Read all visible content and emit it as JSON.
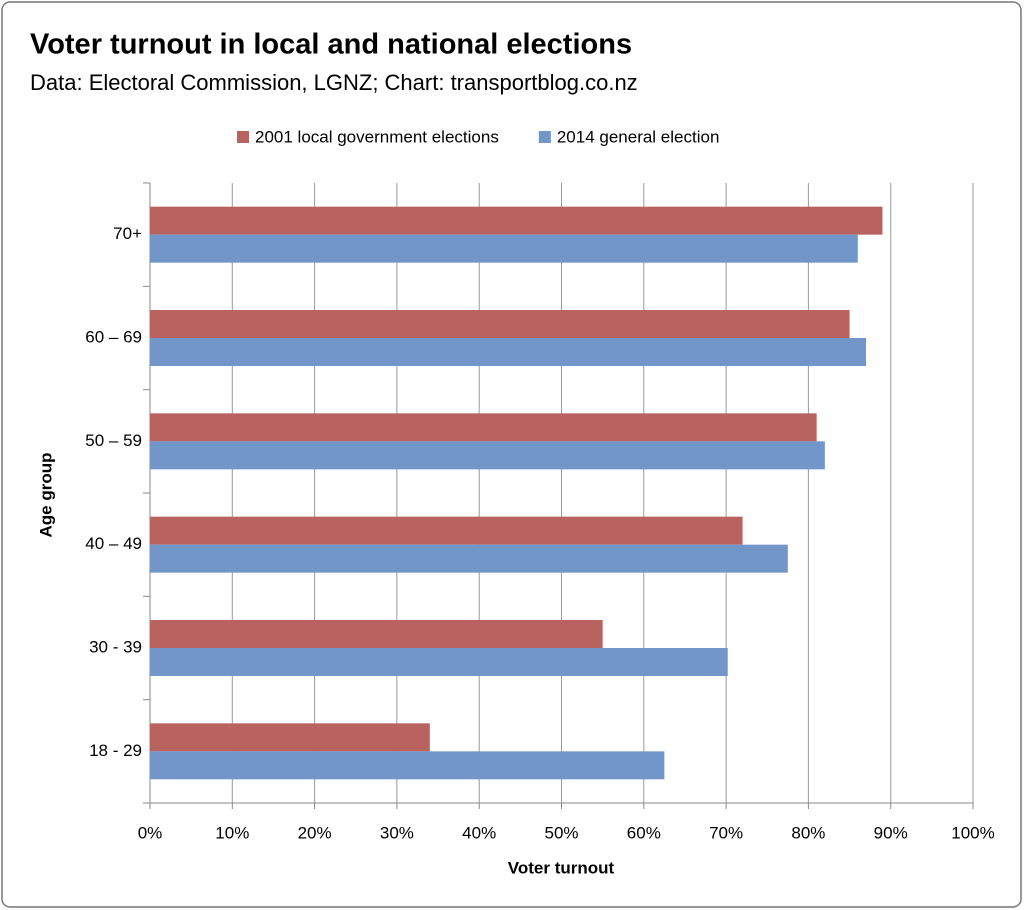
{
  "chart_data": {
    "type": "barh",
    "title": "Voter turnout in local and national elections",
    "subtitle": "Data: Electoral Commission, LGNZ; Chart: transportblog.co.nz",
    "xlabel": "Voter turnout",
    "ylabel": "Age group",
    "categories": [
      "70+",
      "60 – 69",
      "50 – 59",
      "40 – 49",
      "30 - 39",
      "18 - 29"
    ],
    "series": [
      {
        "name": "2001 local government elections",
        "color": "#b8635f",
        "values": [
          89,
          85,
          81,
          72,
          55,
          34
        ]
      },
      {
        "name": "2014 general election",
        "color": "#7396c8",
        "values": [
          86,
          87,
          82,
          77.5,
          70.2,
          62.5
        ]
      }
    ],
    "xlim": [
      0,
      100
    ],
    "xticks": [
      {
        "value": 0,
        "label": "0%"
      },
      {
        "value": 10,
        "label": "10%"
      },
      {
        "value": 20,
        "label": "20%"
      },
      {
        "value": 30,
        "label": "30%"
      },
      {
        "value": 40,
        "label": "40%"
      },
      {
        "value": 50,
        "label": "50%"
      },
      {
        "value": 60,
        "label": "60%"
      },
      {
        "value": 70,
        "label": "70%"
      },
      {
        "value": 80,
        "label": "80%"
      },
      {
        "value": 90,
        "label": "90%"
      },
      {
        "value": 100,
        "label": "100%"
      }
    ],
    "grid": true,
    "legend": "top"
  }
}
